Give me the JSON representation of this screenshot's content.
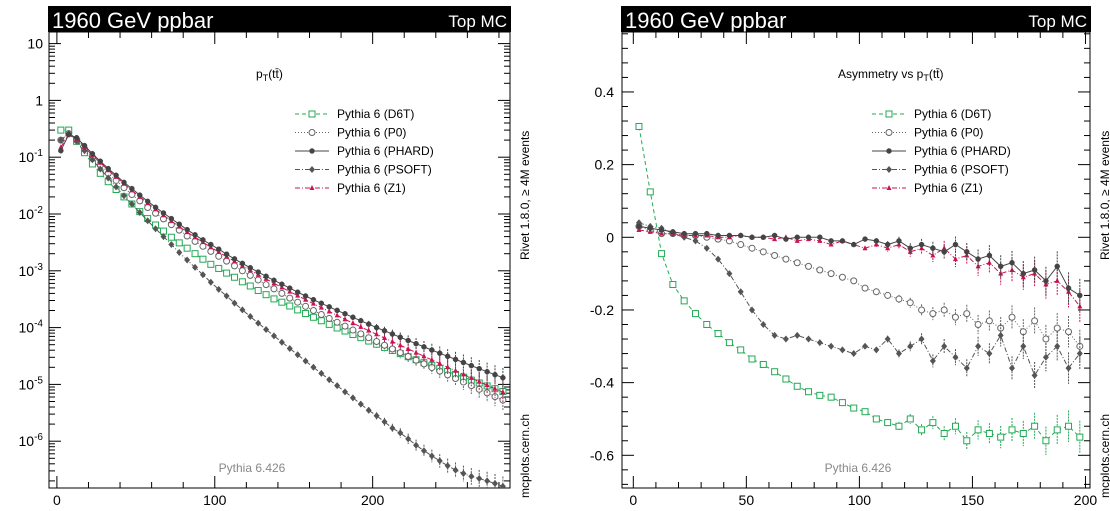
{
  "chart_data": [
    {
      "type": "line",
      "title": "1960 GeV ppbar",
      "tag": "Top MC",
      "observable_main": "p",
      "observable_sub": "T",
      "observable_suffix": "(tt̄)",
      "generator": "Pythia 6.426",
      "side_label": "Rivet 1.8.0, ≥ 4M events",
      "watermark": "mcplots.cern.ch",
      "xlim": [
        -5,
        287
      ],
      "ylim": [
        1.5e-07,
        16
      ],
      "yscale": "log",
      "x_ticks": [
        0,
        100,
        200
      ],
      "y_ticks": [
        {
          "value": 10,
          "base": "10",
          "exp": ""
        },
        {
          "value": 1,
          "base": "1",
          "exp": ""
        },
        {
          "value": 0.1,
          "base": "10",
          "exp": "-1"
        },
        {
          "value": 0.01,
          "base": "10",
          "exp": "-2"
        },
        {
          "value": 0.001,
          "base": "10",
          "exp": "-3"
        },
        {
          "value": 0.0001,
          "base": "10",
          "exp": "-4"
        },
        {
          "value": 1e-05,
          "base": "10",
          "exp": "-5"
        },
        {
          "value": 1e-06,
          "base": "10",
          "exp": "-6"
        }
      ],
      "x": [
        2.5,
        7.5,
        12.5,
        17.5,
        22.5,
        27.5,
        32.5,
        37.5,
        42.5,
        47.5,
        52.5,
        57.5,
        62.5,
        67.5,
        72.5,
        77.5,
        82.5,
        87.5,
        92.5,
        97.5,
        102.5,
        107.5,
        112.5,
        117.5,
        122.5,
        127.5,
        132.5,
        137.5,
        142.5,
        147.5,
        152.5,
        157.5,
        162.5,
        167.5,
        172.5,
        177.5,
        182.5,
        187.5,
        192.5,
        197.5,
        202.5,
        207.5,
        212.5,
        217.5,
        222.5,
        227.5,
        232.5,
        237.5,
        242.5,
        247.5,
        252.5,
        257.5,
        262.5,
        267.5,
        272.5,
        277.5,
        282.5
      ],
      "series": [
        {
          "name": "Pythia 6 (D6T)",
          "color": "#22aa55",
          "dash": "4,3",
          "marker": "open-square",
          "values": [
            0.3,
            0.3,
            0.19,
            0.12,
            0.076,
            0.052,
            0.037,
            0.027,
            0.02,
            0.015,
            0.011,
            0.0083,
            0.0064,
            0.005,
            0.0039,
            0.0031,
            0.0025,
            0.002,
            0.0016,
            0.0013,
            0.0011,
            0.00091,
            0.00077,
            0.00064,
            0.00054,
            0.00045,
            0.00038,
            0.00032,
            0.00028,
            0.00024,
            0.000205,
            0.000177,
            0.000152,
            0.000132,
            0.000114,
            9.85e-05,
            8.7e-05,
            7.55e-05,
            6.65e-05,
            5.8e-05,
            5.1e-05,
            4.48e-05,
            3.95e-05,
            3.48e-05,
            3.07e-05,
            2.72e-05,
            2.41e-05,
            2.14e-05,
            1.9e-05,
            1.69e-05,
            1.5e-05,
            1.34e-05,
            1.19e-05,
            1.06e-05,
            9.4e-06,
            8.4e-06,
            7.5e-06
          ]
        },
        {
          "name": "Pythia 6 (P0)",
          "color": "#666666",
          "dash": "1,2",
          "marker": "open-circle",
          "values": [
            0.2,
            0.26,
            0.2,
            0.14,
            0.1,
            0.072,
            0.052,
            0.039,
            0.029,
            0.022,
            0.017,
            0.013,
            0.0103,
            0.0082,
            0.0065,
            0.0052,
            0.0041,
            0.0033,
            0.0027,
            0.0022,
            0.0018,
            0.00148,
            0.00122,
            0.001,
            0.00083,
            0.00069,
            0.00057,
            0.00048,
            0.0004,
            0.00033,
            0.00028,
            0.000237,
            0.0002,
            0.00017,
            0.000145,
            0.000124,
            0.000106,
            9.05e-05,
            7.75e-05,
            6.64e-05,
            5.7e-05,
            4.89e-05,
            4.2e-05,
            3.61e-05,
            3.1e-05,
            2.67e-05,
            2.3e-05,
            1.98e-05,
            1.71e-05,
            1.47e-05,
            1.27e-05,
            1.1e-05,
            9.5e-06,
            8.2e-06,
            7.1e-06,
            6.1e-06,
            5.3e-06
          ]
        },
        {
          "name": "Pythia 6 (PHARD)",
          "color": "#444444",
          "dash": "",
          "marker": "filled-circle",
          "values": [
            0.13,
            0.25,
            0.22,
            0.16,
            0.115,
            0.085,
            0.063,
            0.048,
            0.036,
            0.028,
            0.0215,
            0.0167,
            0.0131,
            0.0104,
            0.0083,
            0.0066,
            0.0053,
            0.0043,
            0.0035,
            0.0029,
            0.0024,
            0.00196,
            0.00162,
            0.00135,
            0.00113,
            0.00095,
            0.0008,
            0.00068,
            0.00058,
            0.000495,
            0.00042,
            0.00036,
            0.00031,
            0.000268,
            0.000232,
            0.000201,
            0.000175,
            0.000152,
            0.000132,
            0.000115,
            0.0001,
            8.8e-05,
            7.7e-05,
            6.75e-05,
            5.92e-05,
            5.2e-05,
            4.57e-05,
            4.02e-05,
            3.54e-05,
            3.12e-05,
            2.75e-05,
            2.43e-05,
            2.14e-05,
            1.89e-05,
            1.67e-05,
            1.48e-05,
            1.31e-05
          ]
        },
        {
          "name": "Pythia 6 (PSOFT)",
          "color": "#555555",
          "dash": "5,2,1,2",
          "marker": "filled-diamond",
          "values": [
            0.2,
            0.26,
            0.19,
            0.13,
            0.09,
            0.062,
            0.043,
            0.03,
            0.021,
            0.015,
            0.0106,
            0.0076,
            0.0055,
            0.004,
            0.0029,
            0.0021,
            0.00155,
            0.00115,
            0.00085,
            0.00063,
            0.00047,
            0.00036,
            0.00027,
            0.000205,
            0.000157,
            0.00012,
            9.25e-05,
            7.15e-05,
            5.53e-05,
            4.28e-05,
            3.32e-05,
            2.58e-05,
            2e-05,
            1.56e-05,
            1.21e-05,
            9.5e-06,
            7.4e-06,
            5.8e-06,
            4.5e-06,
            3.5e-06,
            2.8e-06,
            2.2e-06,
            1.7e-06,
            1.4e-06,
            1.1e-06,
            8.5e-07,
            6.8e-07,
            5.5e-07,
            4.5e-07,
            3.7e-07,
            3.1e-07,
            2.7e-07,
            2.4e-07,
            2.2e-07,
            2e-07,
            1.8e-07,
            1.6e-07
          ]
        },
        {
          "name": "Pythia 6 (Z1)",
          "color": "#cc1155",
          "dash": "5,2,1,2",
          "marker": "filled-star",
          "values": [
            0.15,
            0.25,
            0.21,
            0.15,
            0.108,
            0.08,
            0.059,
            0.045,
            0.034,
            0.026,
            0.02,
            0.0155,
            0.0121,
            0.0095,
            0.0075,
            0.006,
            0.0048,
            0.0039,
            0.0032,
            0.0026,
            0.00214,
            0.00177,
            0.00147,
            0.00122,
            0.00102,
            0.00085,
            0.00072,
            0.0006,
            0.000508,
            0.00043,
            0.000365,
            0.00031,
            0.000264,
            0.000225,
            0.000192,
            0.000164,
            0.00014,
            0.00012,
            0.000103,
            8.85e-05,
            7.62e-05,
            6.57e-05,
            5.66e-05,
            4.88e-05,
            4.21e-05,
            3.63e-05,
            3.13e-05,
            2.7e-05,
            2.33e-05,
            2.01e-05,
            1.74e-05,
            1.5e-05,
            1.3e-05,
            1.12e-05,
            9.7e-06,
            8.4e-06,
            7.3e-06
          ]
        }
      ]
    },
    {
      "type": "line",
      "title": "1960 GeV ppbar",
      "tag": "Top MC",
      "observable_main": "Asymmetry vs p",
      "observable_sub": "T",
      "observable_suffix": "(tt̄)",
      "generator": "Pythia 6.426",
      "side_label": "Rivet 1.8.0, ≥ 4M events",
      "watermark": "mcplots.cern.ch",
      "xlim": [
        -5,
        202
      ],
      "ylim": [
        -0.69,
        0.565
      ],
      "yscale": "linear",
      "x_ticks": [
        0,
        50,
        100,
        150,
        200
      ],
      "y_ticks": [
        {
          "value": 0.4,
          "label": "0.4"
        },
        {
          "value": 0.2,
          "label": "0.2"
        },
        {
          "value": 0,
          "label": "0"
        },
        {
          "value": -0.2,
          "label": "-0.2"
        },
        {
          "value": -0.4,
          "label": "-0.4"
        },
        {
          "value": -0.6,
          "label": "-0.6"
        }
      ],
      "x": [
        2.5,
        7.5,
        12.5,
        17.5,
        22.5,
        27.5,
        32.5,
        37.5,
        42.5,
        47.5,
        52.5,
        57.5,
        62.5,
        67.5,
        72.5,
        77.5,
        82.5,
        87.5,
        92.5,
        97.5,
        102.5,
        107.5,
        112.5,
        117.5,
        122.5,
        127.5,
        132.5,
        137.5,
        142.5,
        147.5,
        152.5,
        157.5,
        162.5,
        167.5,
        172.5,
        177.5,
        182.5,
        187.5,
        192.5,
        197.5
      ],
      "series": [
        {
          "name": "Pythia 6 (D6T)",
          "color": "#22aa55",
          "dash": "4,3",
          "marker": "open-square",
          "values": [
            0.305,
            0.125,
            -0.045,
            -0.13,
            -0.175,
            -0.21,
            -0.24,
            -0.265,
            -0.29,
            -0.31,
            -0.335,
            -0.35,
            -0.37,
            -0.39,
            -0.41,
            -0.425,
            -0.435,
            -0.44,
            -0.455,
            -0.47,
            -0.48,
            -0.5,
            -0.51,
            -0.52,
            -0.5,
            -0.53,
            -0.51,
            -0.54,
            -0.52,
            -0.56,
            -0.53,
            -0.54,
            -0.55,
            -0.53,
            -0.54,
            -0.52,
            -0.56,
            -0.53,
            -0.52,
            -0.55
          ]
        },
        {
          "name": "Pythia 6 (P0)",
          "color": "#666666",
          "dash": "1,2",
          "marker": "open-circle",
          "values": [
            0.03,
            0.02,
            0.01,
            0.01,
            0.005,
            0.005,
            0.0,
            -0.005,
            -0.01,
            -0.02,
            -0.03,
            -0.04,
            -0.05,
            -0.06,
            -0.07,
            -0.08,
            -0.09,
            -0.1,
            -0.11,
            -0.12,
            -0.14,
            -0.15,
            -0.16,
            -0.17,
            -0.18,
            -0.2,
            -0.21,
            -0.2,
            -0.22,
            -0.21,
            -0.24,
            -0.23,
            -0.25,
            -0.22,
            -0.26,
            -0.23,
            -0.28,
            -0.25,
            -0.26,
            -0.3
          ]
        },
        {
          "name": "Pythia 6 (PHARD)",
          "color": "#444444",
          "dash": "",
          "marker": "filled-circle",
          "values": [
            0.03,
            0.025,
            0.02,
            0.015,
            0.01,
            0.01,
            0.01,
            0.005,
            0.005,
            0.005,
            0.0,
            0.0,
            0.005,
            -0.005,
            0.0,
            0.0,
            0.0,
            -0.01,
            -0.01,
            -0.02,
            -0.005,
            -0.01,
            -0.02,
            -0.01,
            -0.03,
            -0.02,
            -0.03,
            -0.04,
            -0.02,
            -0.04,
            -0.06,
            -0.05,
            -0.08,
            -0.07,
            -0.1,
            -0.09,
            -0.12,
            -0.08,
            -0.14,
            -0.16
          ]
        },
        {
          "name": "Pythia 6 (PSOFT)",
          "color": "#555555",
          "dash": "5,2,1,2",
          "marker": "filled-diamond",
          "values": [
            0.04,
            0.03,
            0.025,
            0.01,
            0.0,
            -0.01,
            -0.03,
            -0.06,
            -0.1,
            -0.15,
            -0.2,
            -0.24,
            -0.27,
            -0.28,
            -0.27,
            -0.28,
            -0.29,
            -0.3,
            -0.31,
            -0.32,
            -0.3,
            -0.31,
            -0.28,
            -0.32,
            -0.3,
            -0.28,
            -0.34,
            -0.3,
            -0.33,
            -0.36,
            -0.3,
            -0.32,
            -0.27,
            -0.36,
            -0.3,
            -0.38,
            -0.33,
            -0.3,
            -0.36,
            -0.32
          ]
        },
        {
          "name": "Pythia 6 (Z1)",
          "color": "#cc1155",
          "dash": "5,2,1,2",
          "marker": "filled-star",
          "values": [
            0.02,
            0.015,
            0.01,
            0.01,
            0.005,
            0.005,
            0.005,
            0.0,
            0.0,
            0.005,
            0.0,
            0.0,
            -0.005,
            0.0,
            -0.01,
            -0.005,
            -0.01,
            -0.02,
            -0.01,
            -0.02,
            -0.03,
            -0.02,
            -0.03,
            -0.02,
            -0.04,
            -0.03,
            -0.05,
            -0.03,
            -0.06,
            -0.05,
            -0.08,
            -0.07,
            -0.1,
            -0.09,
            -0.11,
            -0.1,
            -0.13,
            -0.12,
            -0.15,
            -0.19
          ]
        }
      ]
    }
  ]
}
